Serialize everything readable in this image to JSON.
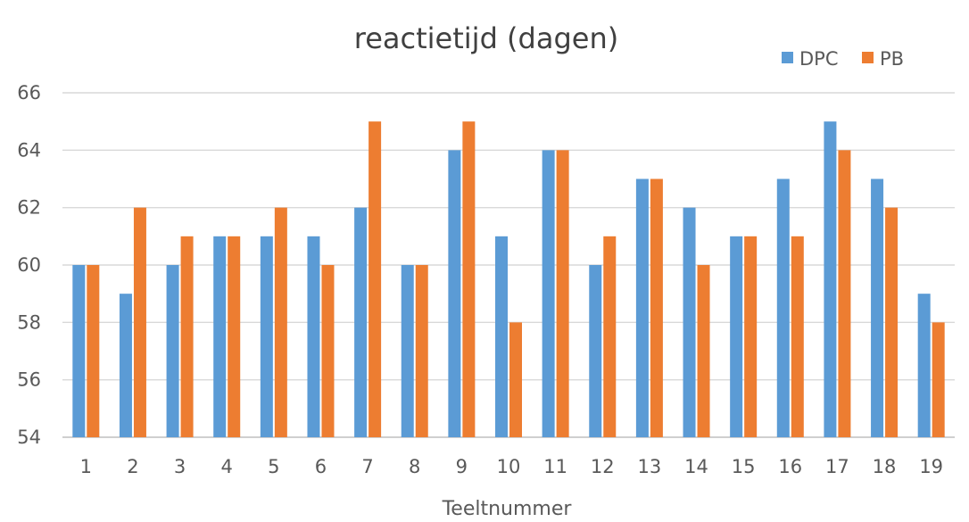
{
  "chart_data": {
    "type": "bar",
    "title": "reactietijd (dagen)",
    "xlabel": "Teeltnummer",
    "ylabel": "",
    "ylim": [
      54,
      66
    ],
    "yticks": [
      54,
      56,
      58,
      60,
      62,
      64,
      66
    ],
    "grid": true,
    "legend_position": "top-right",
    "categories": [
      "1",
      "2",
      "3",
      "4",
      "5",
      "6",
      "7",
      "8",
      "9",
      "10",
      "11",
      "12",
      "13",
      "14",
      "15",
      "16",
      "17",
      "18",
      "19"
    ],
    "series": [
      {
        "name": "DPC",
        "color": "#5b9bd5",
        "values": [
          60,
          59,
          60,
          61,
          61,
          61,
          62,
          60,
          64,
          61,
          64,
          60,
          63,
          62,
          61,
          63,
          65,
          63,
          59
        ]
      },
      {
        "name": "PB",
        "color": "#ed7d31",
        "values": [
          60,
          62,
          61,
          61,
          62,
          60,
          65,
          60,
          65,
          58,
          64,
          61,
          63,
          60,
          61,
          61,
          64,
          62,
          58
        ]
      }
    ]
  }
}
